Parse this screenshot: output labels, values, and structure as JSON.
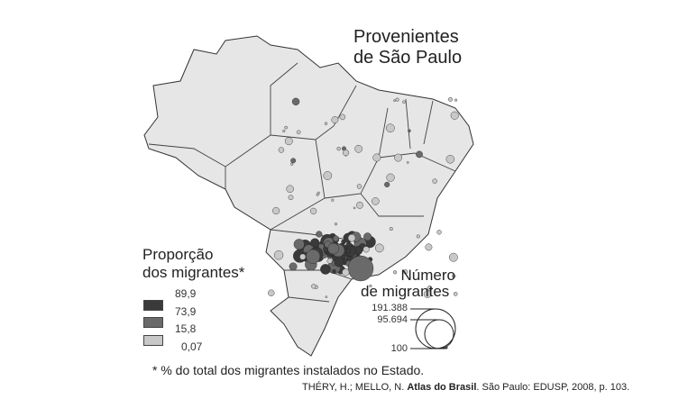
{
  "title_line1": "Provenientes",
  "title_line2": "de São Paulo",
  "legend_proportion": {
    "title_line1": "Proporção",
    "title_line2": "dos migrantes*",
    "breaks": [
      "89,9",
      "73,9",
      "15,8",
      "0,07"
    ],
    "colors": [
      "#3a3a3a",
      "#6a6a6a",
      "#c8c8c8"
    ]
  },
  "legend_number": {
    "title_line1": "Número",
    "title_line2": "de migrantes",
    "values": [
      "191.388",
      "95.694",
      "100"
    ]
  },
  "footnote": "* % do total dos migrantes instalados no Estado.",
  "source": {
    "authors": "THÉRY, H.; MELLO, N. ",
    "work": "Atlas do Brasil",
    "rest": ". São Paulo: EDUSP, 2008, p. 103."
  }
}
